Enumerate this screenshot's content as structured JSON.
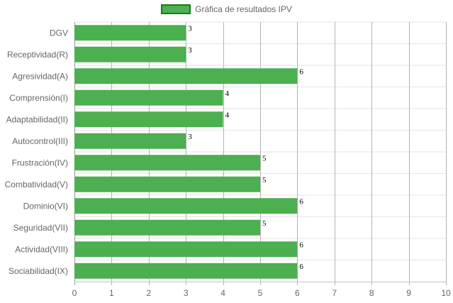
{
  "legend": {
    "label": "Gráfica de resultados IPV",
    "color": "#4caf50",
    "border_color": "#1b7a1e"
  },
  "chart_data": {
    "type": "bar",
    "orientation": "horizontal",
    "categories": [
      "DGV",
      "Receptividad(R)",
      "Agresividad(A)",
      "Comprensión(I)",
      "Adaptabilidad(II)",
      "Autocontrol(III)",
      "Frustración(IV)",
      "Combatividad(V)",
      "Dominio(VI)",
      "Seguridad(VII)",
      "Actividad(VIII)",
      "Sociabilidad(IX)"
    ],
    "series": [
      {
        "name": "Gráfica de resultados IPV",
        "values": [
          3,
          3,
          6,
          4,
          4,
          3,
          5,
          5,
          6,
          5,
          6,
          6
        ]
      }
    ],
    "xlim": [
      0,
      10
    ],
    "xticks": [
      0,
      1,
      2,
      3,
      4,
      5,
      6,
      7,
      8,
      9,
      10
    ],
    "grid": true,
    "data_labels": true,
    "legend_position": "top"
  }
}
